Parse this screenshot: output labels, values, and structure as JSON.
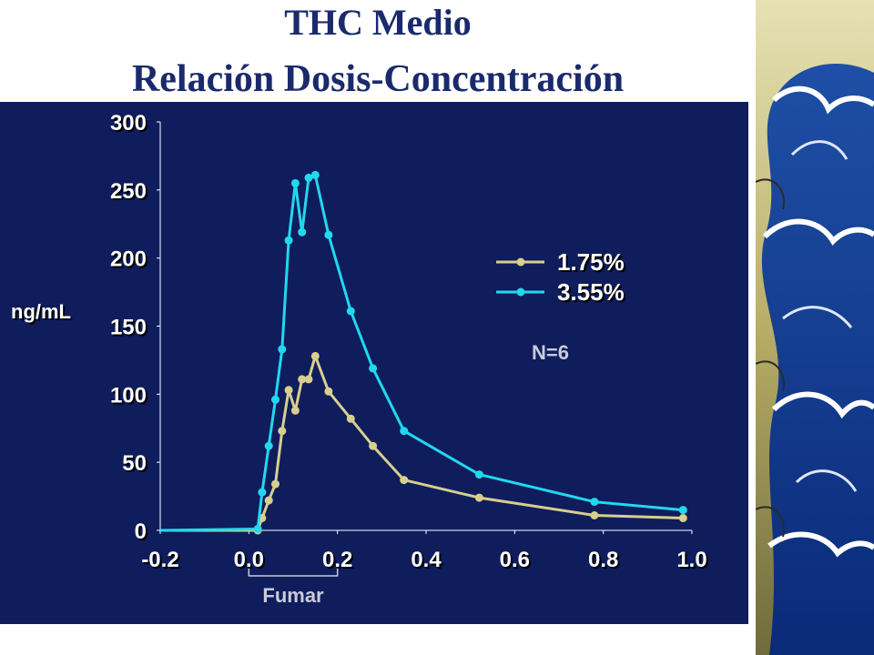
{
  "slide": {
    "title_line1": "THC Medio",
    "title_line2": "Relación Dosis-Concentración"
  },
  "colors": {
    "background_panel": "#0f1d5c",
    "title": "#1a2a6c",
    "series_1": "#d8cf8e",
    "series_2": "#22d8ee",
    "axis_text": "#ffffff",
    "annotation": "#c8ccda"
  },
  "decor": {
    "side_strip": "wave-artwork"
  },
  "chart_data": {
    "type": "line",
    "title": "",
    "xlabel": "",
    "ylabel": "ng/mL",
    "xlim": [
      -0.2,
      1.0
    ],
    "ylim": [
      0,
      300
    ],
    "x_ticks": [
      "-0.2",
      "0.0",
      "0.2",
      "0.4",
      "0.6",
      "0.8",
      "1.0"
    ],
    "y_ticks": [
      "0",
      "50",
      "100",
      "150",
      "200",
      "250",
      "300"
    ],
    "grid": false,
    "legend_position": "top-right",
    "series": [
      {
        "name": "1.75%",
        "color": "#d8cf8e",
        "points": [
          [
            -0.2,
            0
          ],
          [
            0.02,
            0
          ],
          [
            0.03,
            9
          ],
          [
            0.045,
            22
          ],
          [
            0.06,
            34
          ],
          [
            0.075,
            73
          ],
          [
            0.09,
            103
          ],
          [
            0.105,
            88
          ],
          [
            0.12,
            111
          ],
          [
            0.135,
            111
          ],
          [
            0.15,
            128
          ],
          [
            0.18,
            102
          ],
          [
            0.23,
            82
          ],
          [
            0.28,
            62
          ],
          [
            0.35,
            37
          ],
          [
            0.52,
            24
          ],
          [
            0.78,
            11
          ],
          [
            0.98,
            9
          ]
        ]
      },
      {
        "name": "3.55%",
        "color": "#22d8ee",
        "points": [
          [
            -0.2,
            0
          ],
          [
            0.02,
            1
          ],
          [
            0.03,
            28
          ],
          [
            0.045,
            62
          ],
          [
            0.06,
            96
          ],
          [
            0.075,
            133
          ],
          [
            0.09,
            213
          ],
          [
            0.105,
            255
          ],
          [
            0.12,
            219
          ],
          [
            0.135,
            259
          ],
          [
            0.15,
            261
          ],
          [
            0.18,
            217
          ],
          [
            0.23,
            161
          ],
          [
            0.28,
            119
          ],
          [
            0.35,
            73
          ],
          [
            0.52,
            41
          ],
          [
            0.78,
            21
          ],
          [
            0.98,
            15
          ]
        ]
      }
    ],
    "annotations": {
      "n_label": "N=6",
      "bracket_label": "Fumar",
      "bracket_range": [
        0.0,
        0.2
      ]
    }
  }
}
